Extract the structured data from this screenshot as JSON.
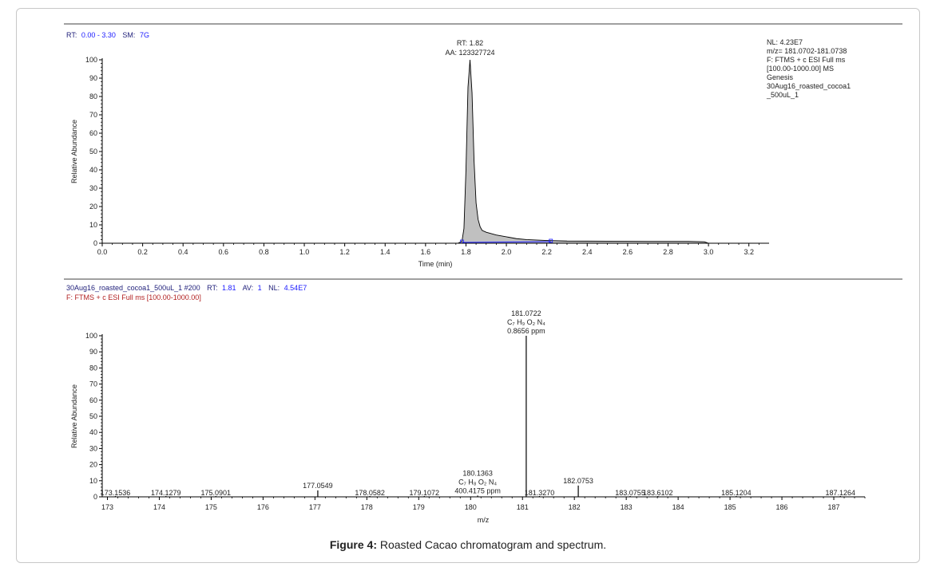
{
  "colors": {
    "text": "#1f1f7a",
    "red": "#b22222",
    "accent": "#1a1aff",
    "fill": "#c0c0c0",
    "axis": "#000000"
  },
  "caption": {
    "label": "Figure 4:",
    "text": "Roasted Cacao chromatogram and spectrum."
  },
  "chart_data": [
    {
      "type": "area",
      "header": {
        "rt_label": "RT:",
        "rt_value": "0.00 - 3.30",
        "sm_label": "SM:",
        "sm_value": "7G"
      },
      "peak_label": {
        "rt": "RT: 1.82",
        "aa": "AA: 123327724"
      },
      "info_lines": [
        "NL: 4.23E7",
        "m/z= 181.0702-181.0738",
        "F: FTMS + c ESI Full ms",
        "[100.00-1000.00]  MS",
        "Genesis",
        "30Aug16_roasted_cocoa1",
        "_500uL_1"
      ],
      "xlabel": "Time (min)",
      "ylabel": "Relative Abundance",
      "xlim": [
        0,
        3.3
      ],
      "ylim": [
        0,
        100
      ],
      "xticks": [
        "0.0",
        "0.2",
        "0.4",
        "0.6",
        "0.8",
        "1.0",
        "1.2",
        "1.4",
        "1.6",
        "1.8",
        "2.0",
        "2.2",
        "2.4",
        "2.6",
        "2.8",
        "3.0",
        "3.2"
      ],
      "yticks": [
        "0",
        "10",
        "20",
        "30",
        "40",
        "50",
        "60",
        "70",
        "80",
        "90",
        "100"
      ],
      "x": [
        0,
        1.7,
        1.76,
        1.78,
        1.79,
        1.8,
        1.81,
        1.82,
        1.83,
        1.84,
        1.85,
        1.86,
        1.87,
        1.88,
        1.9,
        1.95,
        2.0,
        2.05,
        2.1,
        2.2,
        2.3,
        2.5,
        2.7,
        2.9,
        2.98,
        3.0,
        3.3
      ],
      "y": [
        0,
        0,
        0,
        1,
        8,
        40,
        85,
        100,
        82,
        45,
        22,
        13,
        9,
        7,
        6,
        4.5,
        3.5,
        2.5,
        2,
        1.5,
        1.2,
        1.1,
        1,
        1,
        0.8,
        0,
        0
      ],
      "peak_rt": 1.82,
      "baseline": {
        "start": 1.78,
        "end": 2.22
      }
    },
    {
      "type": "bar",
      "header": {
        "file": "30Aug16_roasted_cocoa1_500uL_1 #200",
        "rt_label": "RT:",
        "rt_value": "1.81",
        "av_label": "AV:",
        "av_value": "1",
        "nl_label": "NL:",
        "nl_value": "4.54E7",
        "filter": "F: FTMS + c ESI Full ms [100.00-1000.00]"
      },
      "xlabel": "m/z",
      "ylabel": "Relative Abundance",
      "xlim": [
        172.9,
        187.6
      ],
      "ylim": [
        0,
        100
      ],
      "xticks": [
        "173",
        "174",
        "175",
        "176",
        "177",
        "178",
        "179",
        "180",
        "181",
        "182",
        "183",
        "184",
        "185",
        "186",
        "187"
      ],
      "yticks": [
        "0",
        "10",
        "20",
        "30",
        "40",
        "50",
        "60",
        "70",
        "80",
        "90",
        "100"
      ],
      "peaks": [
        {
          "mz": 173.1536,
          "intensity": 0.5,
          "label": "173.1536"
        },
        {
          "mz": 174.1279,
          "intensity": 0.5,
          "label": "174.1279"
        },
        {
          "mz": 175.0901,
          "intensity": 0.5,
          "label": "175.0901"
        },
        {
          "mz": 177.0549,
          "intensity": 4,
          "label": "177.0549"
        },
        {
          "mz": 178.0582,
          "intensity": 0.5,
          "label": "178.0582"
        },
        {
          "mz": 179.1072,
          "intensity": 0.5,
          "label": "179.1072"
        },
        {
          "mz": 180.1363,
          "intensity": 0.8,
          "label": "180.1363",
          "formula": "C₇ H₈ O₂ N₄",
          "ppm": "400.4175 ppm"
        },
        {
          "mz": 181.0722,
          "intensity": 100,
          "label": "181.0722",
          "formula": "C₇ H₉ O₂ N₄",
          "ppm": "0.8656 ppm"
        },
        {
          "mz": 181.327,
          "intensity": 0.5,
          "label": "181.3270"
        },
        {
          "mz": 182.0753,
          "intensity": 7,
          "label": "182.0753"
        },
        {
          "mz": 183.0755,
          "intensity": 0.5,
          "label": "183.0755"
        },
        {
          "mz": 183.6102,
          "intensity": 0.5,
          "label": "183.6102"
        },
        {
          "mz": 185.1204,
          "intensity": 0.5,
          "label": "185.1204"
        },
        {
          "mz": 187.1264,
          "intensity": 0.5,
          "label": "187.1264"
        }
      ]
    }
  ]
}
